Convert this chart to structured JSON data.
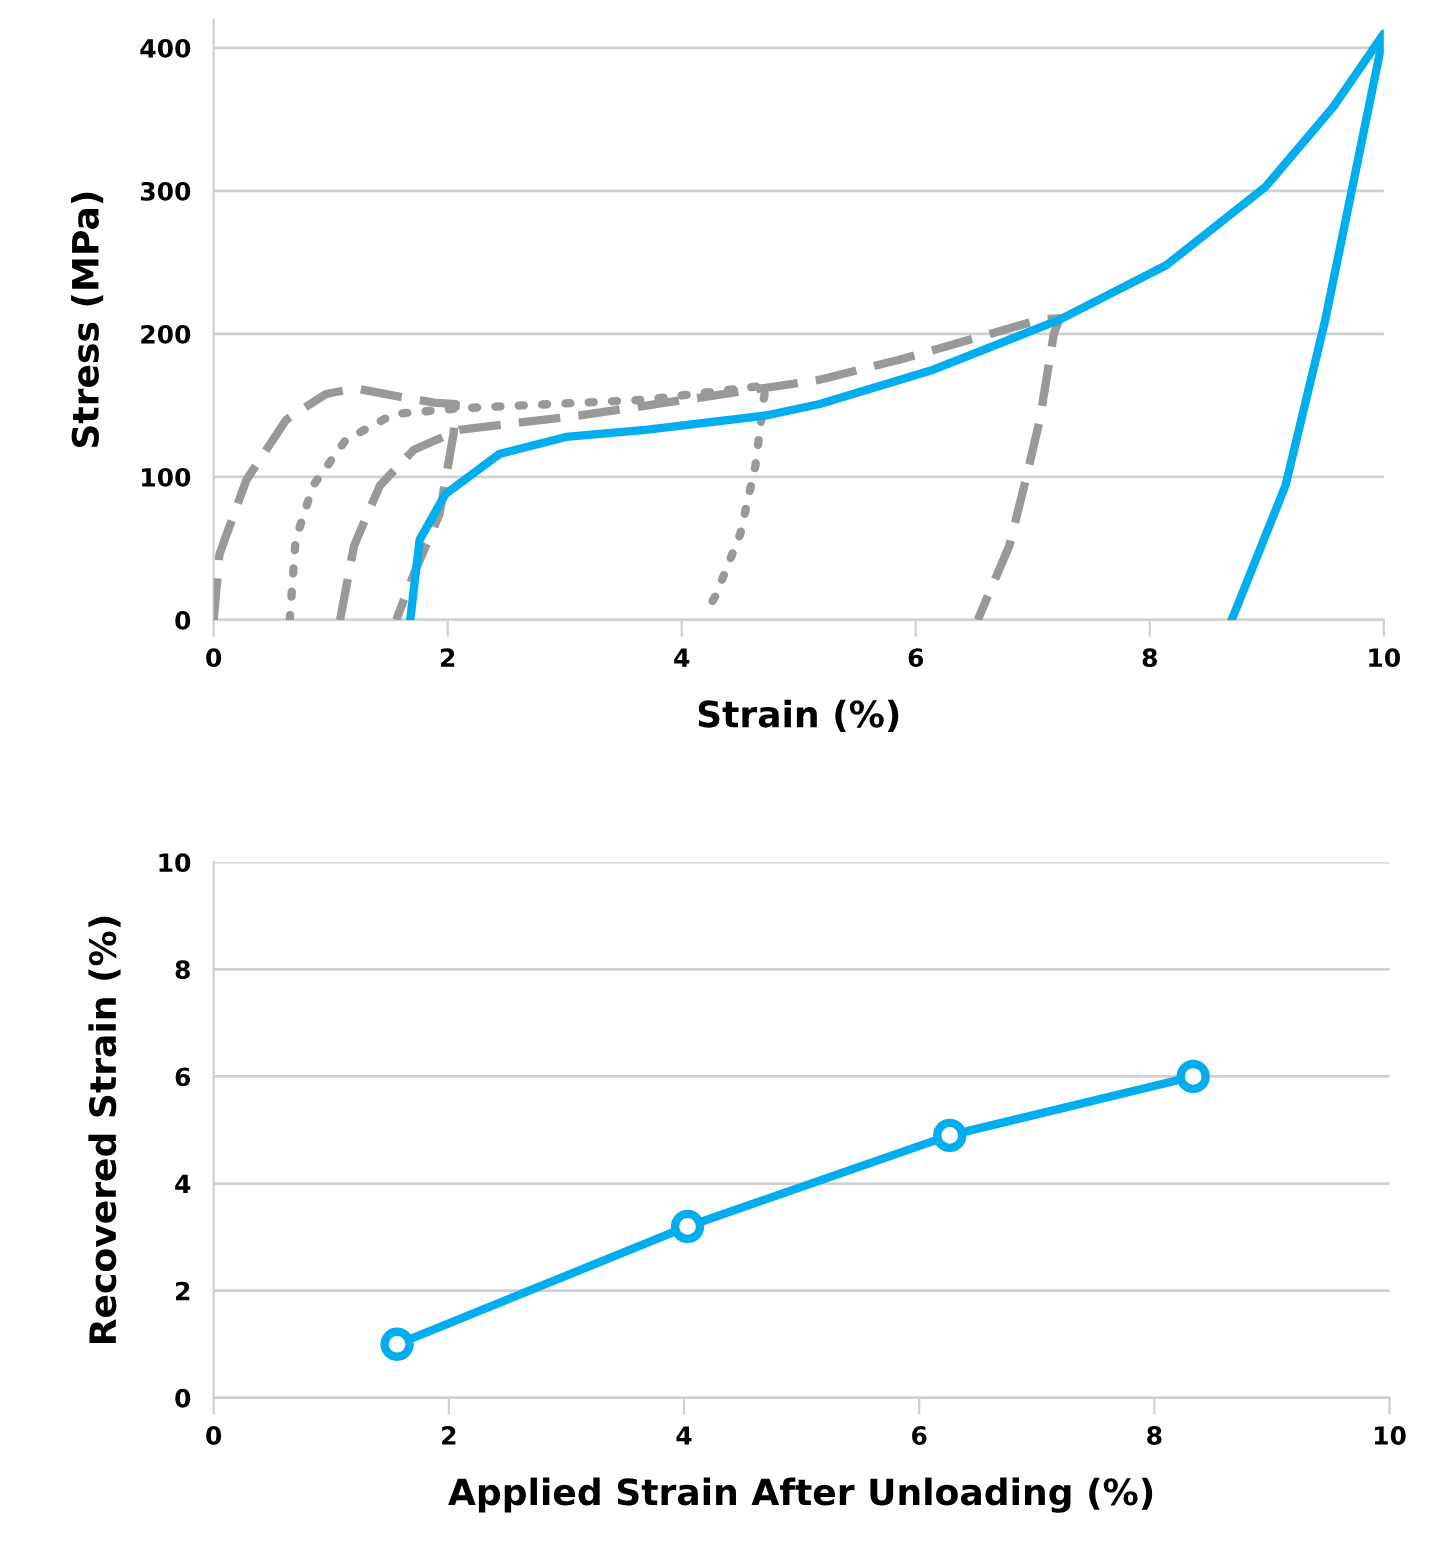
{
  "chart_data": [
    {
      "type": "line",
      "xlabel": "Strain (%)",
      "ylabel": "Stress (MPa)",
      "xlim": [
        0,
        10
      ],
      "ylim": [
        0,
        420
      ],
      "xticks": [
        0,
        2,
        4,
        6,
        8,
        10
      ],
      "yticks": [
        0,
        100,
        200,
        300,
        400
      ],
      "grid": "y",
      "legend": false,
      "marker": "none",
      "series": [
        {
          "color": "#999999",
          "line_style": "dashed",
          "x": [
            0.0,
            0.05,
            0.28,
            0.62,
            0.96,
            1.21,
            1.53,
            1.88,
            2.07,
            2.05,
            1.93,
            1.71,
            1.56
          ],
          "values": [
            0,
            46,
            98,
            140,
            158,
            162,
            157,
            152,
            151,
            130,
            74,
            32,
            0
          ]
        },
        {
          "color": "#999999",
          "line_style": "dotted",
          "x": [
            0.65,
            0.7,
            0.85,
            1.13,
            1.54,
            2.1,
            3.69,
            4.72,
            4.7,
            4.63,
            4.5,
            4.29,
            4.24
          ],
          "values": [
            0,
            56,
            94,
            126,
            144,
            148,
            154,
            164,
            154,
            108,
            60,
            17,
            10
          ]
        },
        {
          "color": "#999999",
          "line_style": "dashed",
          "x": [
            1.08,
            1.2,
            1.42,
            1.71,
            2.1,
            3.13,
            5.18,
            5.86,
            7.06,
            7.23,
            7.18,
            7.06,
            6.94,
            6.8,
            6.53
          ],
          "values": [
            0,
            52,
            94,
            119,
            133,
            143,
            168,
            182,
            210,
            211,
            200,
            140,
            98,
            52,
            0
          ]
        },
        {
          "color": "#00aeef",
          "line_style": "solid",
          "x": [
            1.68,
            1.76,
            1.98,
            2.44,
            3.01,
            3.69,
            4.72,
            5.18,
            6.15,
            7.23,
            8.14,
            8.99,
            9.57,
            10.0,
            9.85,
            9.5,
            9.16,
            8.7
          ],
          "values": [
            0,
            56,
            88,
            116,
            128,
            133,
            143,
            151,
            175,
            210,
            248,
            303,
            359,
            410,
            350,
            210,
            94,
            0
          ]
        }
      ]
    },
    {
      "type": "line",
      "xlabel": "Applied Strain After Unloading (%)",
      "ylabel": "Recovered Strain (%)",
      "xlim": [
        0,
        10
      ],
      "ylim": [
        0,
        10
      ],
      "xticks": [
        0,
        2,
        4,
        6,
        8,
        10
      ],
      "yticks": [
        0,
        2,
        4,
        6,
        8,
        10
      ],
      "grid": "y",
      "legend": false,
      "marker": "circle",
      "series": [
        {
          "color": "#00aeef",
          "line_style": "solid",
          "x": [
            1.56,
            4.03,
            6.26,
            8.33
          ],
          "values": [
            1.0,
            3.2,
            4.9,
            6.0
          ]
        }
      ]
    }
  ]
}
